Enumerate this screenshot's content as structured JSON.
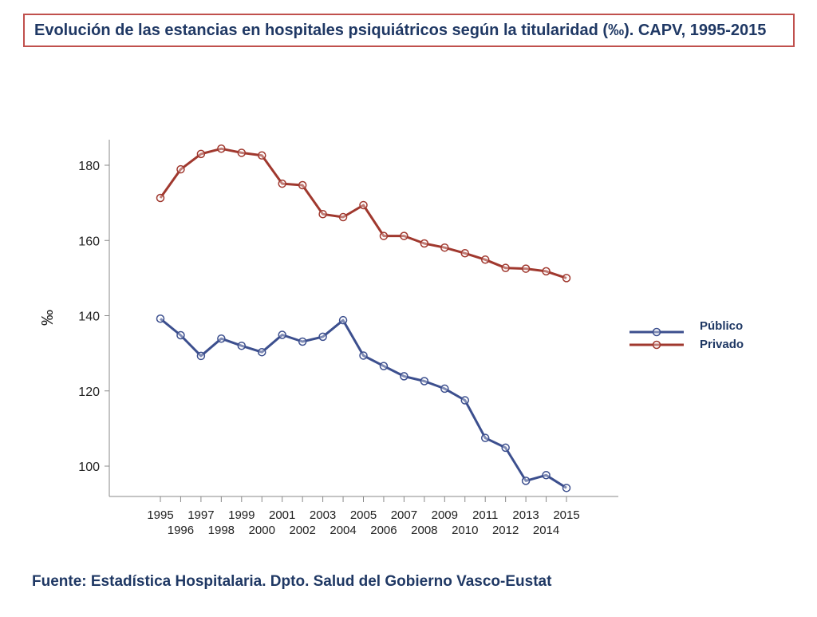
{
  "title": "Evolución de las estancias en hospitales psiquiátricos según la titularidad (‰). CAPV, 1995-2015",
  "source": "Fuente: Estadística Hospitalaria. Dpto. Salud del Gobierno Vasco-Eustat",
  "chart_data": {
    "type": "line",
    "title": "Evolución de las estancias en hospitales psiquiátricos según la titularidad (‰). CAPV, 1995-2015",
    "xlabel": "",
    "ylabel": "‰",
    "ylim": [
      92,
      186
    ],
    "yticks": [
      100,
      120,
      140,
      160,
      180
    ],
    "categories": [
      "1995",
      "1996",
      "1997",
      "1998",
      "1999",
      "2000",
      "2001",
      "2002",
      "2003",
      "2004",
      "2005",
      "2006",
      "2007",
      "2008",
      "2009",
      "2010",
      "2011",
      "2012",
      "2013",
      "2014",
      "2015"
    ],
    "series": [
      {
        "name": "Público",
        "color": "#3c4f8e",
        "values": [
          139.2,
          134.8,
          129.3,
          133.9,
          132.0,
          130.3,
          134.9,
          133.1,
          134.4,
          138.8,
          129.4,
          126.6,
          123.9,
          122.6,
          120.6,
          117.5,
          107.5,
          104.9,
          96.1,
          97.6,
          94.2
        ]
      },
      {
        "name": "Privado",
        "color": "#a0382e",
        "values": [
          171.3,
          178.9,
          183.0,
          184.4,
          183.3,
          182.6,
          175.1,
          174.7,
          167.0,
          166.2,
          169.4,
          161.2,
          161.2,
          159.2,
          158.1,
          156.6,
          154.9,
          152.7,
          152.5,
          151.8,
          150.0
        ]
      }
    ],
    "legend_position": "right"
  }
}
